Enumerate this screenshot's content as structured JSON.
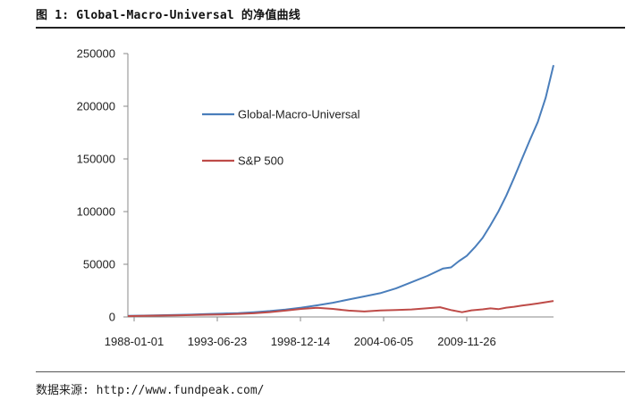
{
  "header": {
    "title": "图 1: Global-Macro-Universal 的净值曲线"
  },
  "footer": {
    "source": "数据来源: http://www.fundpeak.com/"
  },
  "colors": {
    "series_1": "#4a7ebb",
    "series_2": "#be4b48",
    "axis": "#888888"
  },
  "chart_data": {
    "type": "line",
    "title": "",
    "xlabel": "",
    "ylabel": "",
    "x_tick_labels": [
      "1988-01-01",
      "1993-06-23",
      "1998-12-14",
      "2004-06-05",
      "2009-11-26"
    ],
    "y_tick_labels": [
      "0",
      "50000",
      "100000",
      "150000",
      "200000",
      "250000"
    ],
    "ylim": [
      0,
      250000
    ],
    "xlim": [
      1988.0,
      2015.0
    ],
    "grid": false,
    "legend": "center-left",
    "series": [
      {
        "name": "Global-Macro-Universal",
        "color": "#4a7ebb",
        "points": [
          [
            1988.0,
            1000
          ],
          [
            1989.0,
            1300
          ],
          [
            1990.0,
            1600
          ],
          [
            1991.0,
            1900
          ],
          [
            1992.0,
            2200
          ],
          [
            1993.0,
            2700
          ],
          [
            1994.0,
            3200
          ],
          [
            1995.0,
            3600
          ],
          [
            1996.0,
            4500
          ],
          [
            1997.0,
            5600
          ],
          [
            1998.0,
            7000
          ],
          [
            1999.0,
            8800
          ],
          [
            2000.0,
            11000
          ],
          [
            2001.0,
            13500
          ],
          [
            2002.0,
            16500
          ],
          [
            2003.0,
            19500
          ],
          [
            2004.0,
            22500
          ],
          [
            2005.0,
            27000
          ],
          [
            2006.0,
            33000
          ],
          [
            2007.0,
            39000
          ],
          [
            2008.0,
            46000
          ],
          [
            2008.5,
            47000
          ],
          [
            2009.0,
            53000
          ],
          [
            2009.5,
            58000
          ],
          [
            2010.0,
            66000
          ],
          [
            2010.5,
            75000
          ],
          [
            2011.0,
            87000
          ],
          [
            2011.5,
            100000
          ],
          [
            2012.0,
            115000
          ],
          [
            2012.5,
            132000
          ],
          [
            2013.0,
            150000
          ],
          [
            2013.5,
            168000
          ],
          [
            2014.0,
            185000
          ],
          [
            2014.5,
            208000
          ],
          [
            2015.0,
            239000
          ]
        ]
      },
      {
        "name": "S&P 500",
        "color": "#be4b48",
        "points": [
          [
            1988.0,
            800
          ],
          [
            1989.0,
            1000
          ],
          [
            1990.0,
            1300
          ],
          [
            1991.0,
            1500
          ],
          [
            1992.0,
            1800
          ],
          [
            1993.0,
            2100
          ],
          [
            1994.0,
            2400
          ],
          [
            1995.0,
            2900
          ],
          [
            1996.0,
            3500
          ],
          [
            1997.0,
            4600
          ],
          [
            1998.0,
            6000
          ],
          [
            1999.0,
            7600
          ],
          [
            2000.0,
            8700
          ],
          [
            2001.0,
            7600
          ],
          [
            2002.0,
            6000
          ],
          [
            2003.0,
            5200
          ],
          [
            2004.0,
            6200
          ],
          [
            2005.0,
            6600
          ],
          [
            2006.0,
            7100
          ],
          [
            2007.0,
            8300
          ],
          [
            2007.8,
            9200
          ],
          [
            2008.5,
            6500
          ],
          [
            2009.2,
            4500
          ],
          [
            2009.8,
            6300
          ],
          [
            2010.5,
            7200
          ],
          [
            2011.0,
            8100
          ],
          [
            2011.5,
            7400
          ],
          [
            2012.0,
            8800
          ],
          [
            2012.5,
            9700
          ],
          [
            2013.0,
            10800
          ],
          [
            2013.5,
            11800
          ],
          [
            2014.0,
            12800
          ],
          [
            2014.5,
            14000
          ],
          [
            2015.0,
            15200
          ]
        ]
      }
    ]
  }
}
